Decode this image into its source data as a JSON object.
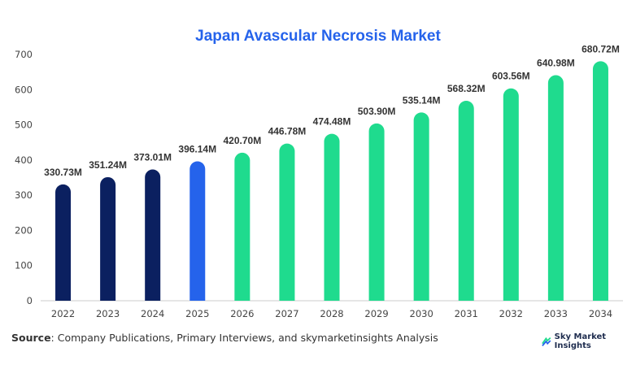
{
  "chart_data": {
    "type": "bar",
    "title": "Japan Avascular Necrosis Market",
    "categories": [
      "2022",
      "2023",
      "2024",
      "2025",
      "2026",
      "2027",
      "2028",
      "2029",
      "2030",
      "2031",
      "2032",
      "2033",
      "2034"
    ],
    "values": [
      330.73,
      351.24,
      373.01,
      396.14,
      420.7,
      446.78,
      474.48,
      503.9,
      535.14,
      568.32,
      603.56,
      640.98,
      680.72
    ],
    "value_labels": [
      "330.73M",
      "351.24M",
      "373.01M",
      "396.14M",
      "420.70M",
      "446.78M",
      "474.48M",
      "503.90M",
      "535.14M",
      "568.32M",
      "603.56M",
      "640.98M",
      "680.72M"
    ],
    "bar_colors": [
      "#0b2060",
      "#0b2060",
      "#0b2060",
      "#2563eb",
      "#1fdb8e",
      "#1fdb8e",
      "#1fdb8e",
      "#1fdb8e",
      "#1fdb8e",
      "#1fdb8e",
      "#1fdb8e",
      "#1fdb8e",
      "#1fdb8e"
    ],
    "title_color": "#2563eb",
    "ylim": [
      0,
      700
    ],
    "yticks": [
      0,
      100,
      200,
      300,
      400,
      500,
      600,
      700
    ],
    "xlabel": "",
    "ylabel": "",
    "grid": false
  },
  "footer": {
    "source_label": "Source",
    "source_text": ": Company Publications, Primary Interviews, and skymarketinsights Analysis",
    "brand": "Sky Market Insights",
    "brand_icon": "sky-market-insights-logo-icon"
  }
}
